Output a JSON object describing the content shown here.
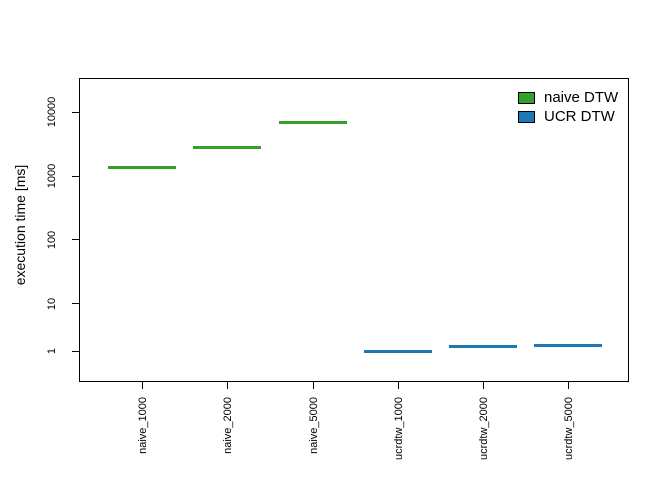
{
  "chart_data": {
    "type": "boxplot",
    "title": "",
    "xlabel": "",
    "ylabel": "execution time [ms]",
    "y_scale": "log",
    "y_ticks": [
      1,
      10,
      100,
      1000,
      10000
    ],
    "ylim_approx": [
      0.45,
      30000
    ],
    "grid": false,
    "legend_position": "top-right-inside",
    "categories": [
      "naive_1000",
      "naive_2000",
      "naive_5000",
      "ucrdtw_1000",
      "ucrdtw_2000",
      "ucrdtw_5000"
    ],
    "values_ms": [
      1370,
      2800,
      7000,
      1.0,
      1.25,
      1.3
    ],
    "series": [
      {
        "name": "naive DTW",
        "color": "#33a02c",
        "categories": [
          "naive_1000",
          "naive_2000",
          "naive_5000"
        ],
        "median_ms": [
          1370,
          2800,
          7000
        ]
      },
      {
        "name": "UCR DTW",
        "color": "#1f78b4",
        "categories": [
          "ucrdtw_1000",
          "ucrdtw_2000",
          "ucrdtw_5000"
        ],
        "median_ms": [
          1.0,
          1.25,
          1.3
        ]
      }
    ],
    "axis_color": "#000000",
    "background_color": "#ffffff"
  }
}
